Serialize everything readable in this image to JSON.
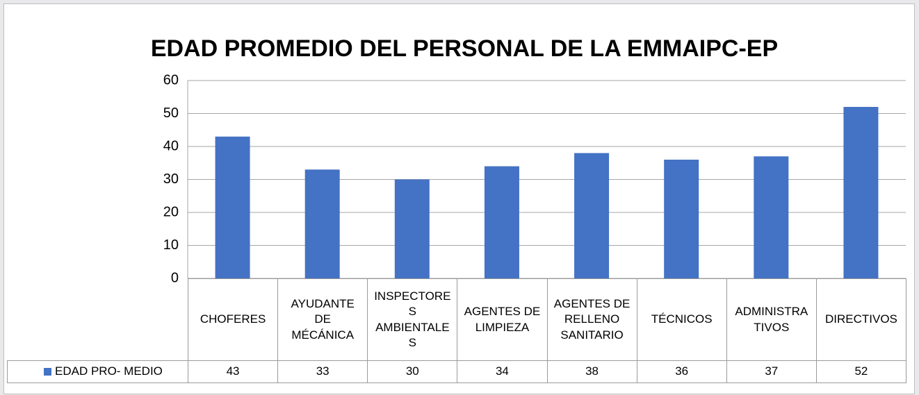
{
  "chart_data": {
    "type": "bar",
    "title": "EDAD PROMEDIO DEL PERSONAL DE LA EMMAIPC-EP",
    "categories": [
      "CHOFERES",
      "AYUDANTE DE MÉCÁNICA",
      "INSPECTORES AMBIENTALES",
      "AGENTES DE LIMPIEZA",
      "AGENTES DE RELLENO SANITARIO",
      "TÉCNICOS",
      "ADMINISTRATIVOS",
      "DIRECTIVOS"
    ],
    "series": [
      {
        "name": "EDAD PRO- MEDIO",
        "color": "#4472c4",
        "values": [
          43,
          33,
          30,
          34,
          38,
          36,
          37,
          52
        ]
      }
    ],
    "ylim": [
      0,
      60
    ],
    "yticks": [
      0,
      10,
      20,
      30,
      40,
      50,
      60
    ],
    "grid": true
  }
}
